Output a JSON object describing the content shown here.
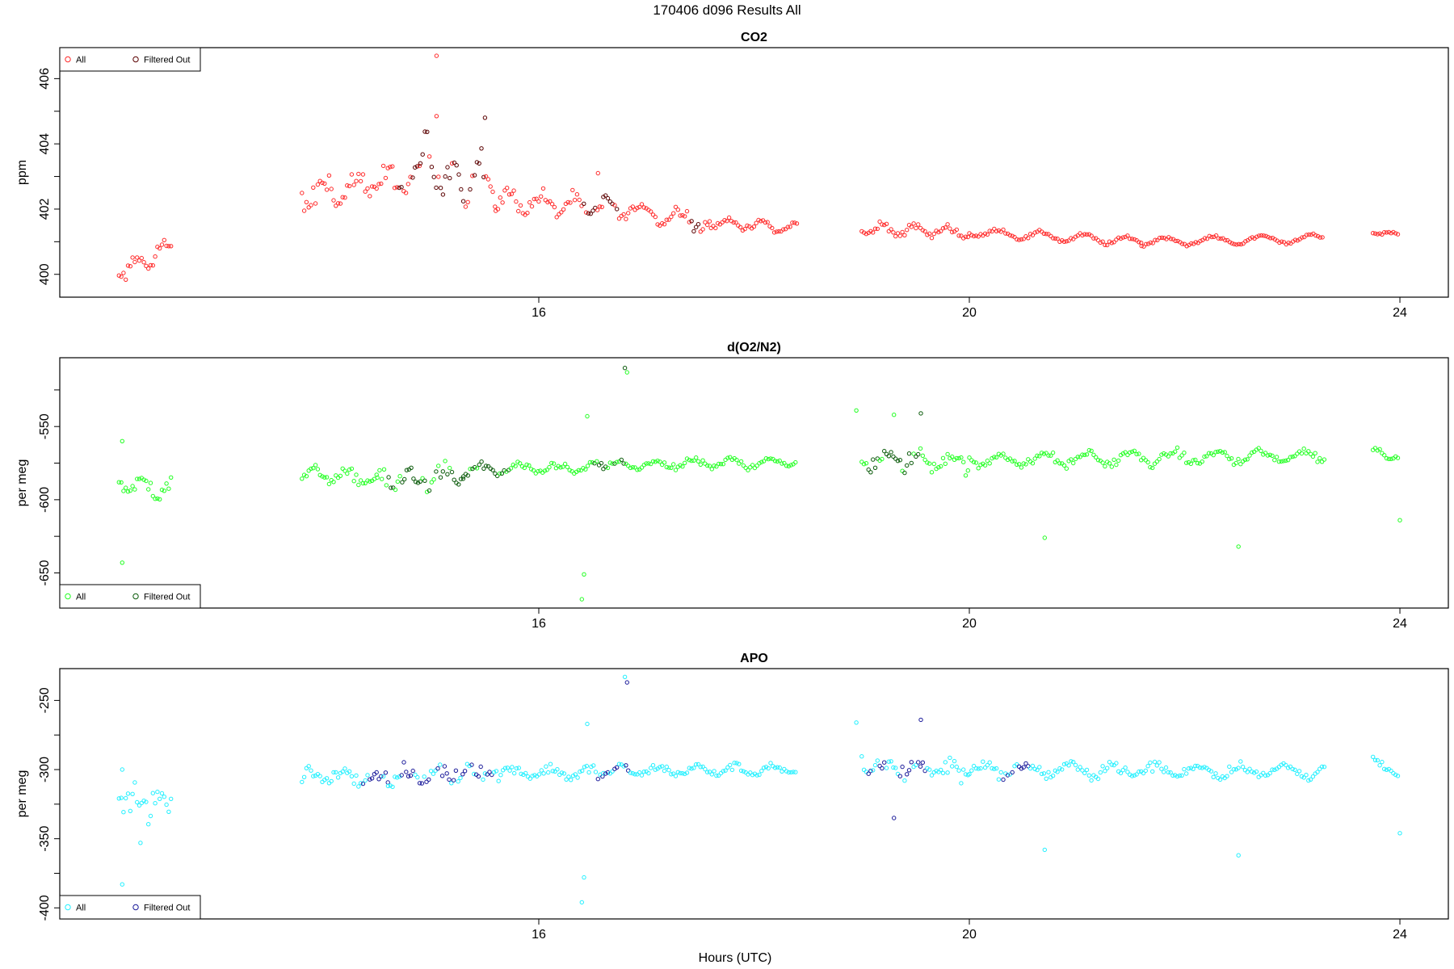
{
  "main_title": "170406   d096   Results All",
  "xlabel": "Hours (UTC)",
  "chart_data": [
    {
      "type": "scatter",
      "title": "CO2",
      "ylabel": "ppm",
      "xlim": [
        11.55,
        24.45
      ],
      "ylim": [
        399.3,
        406.95
      ],
      "x_ticks": [
        16,
        20,
        24
      ],
      "y_ticks": [
        400,
        402,
        404,
        406
      ],
      "y_minor_ticks": [
        401,
        403,
        405
      ],
      "legend_position": "top-left",
      "colors": {
        "all": "#ff2a2a",
        "filtered": "#5a0000"
      },
      "series": [
        {
          "name": "All",
          "segments": [
            {
              "start": 12.1,
              "end": 12.6,
              "base": 400.0,
              "end_base": 400.9,
              "noise": 0.35,
              "amp": 0.2,
              "period": 0.25
            },
            {
              "start": 13.8,
              "end": 14.9,
              "base": 402.4,
              "end_base": 403.0,
              "noise": 0.5,
              "amp": 0.35,
              "period": 0.3
            },
            {
              "start": 14.9,
              "end": 15.6,
              "base": 403.3,
              "end_base": 402.8,
              "noise": 0.8,
              "amp": 0.6,
              "period": 0.25
            },
            {
              "start": 15.6,
              "end": 16.6,
              "base": 402.3,
              "end_base": 402.0,
              "noise": 0.35,
              "amp": 0.25,
              "period": 0.3
            },
            {
              "start": 16.6,
              "end": 17.6,
              "base": 402.1,
              "end_base": 401.6,
              "noise": 0.25,
              "amp": 0.25,
              "period": 0.35
            },
            {
              "start": 17.6,
              "end": 18.4,
              "base": 401.6,
              "end_base": 401.4,
              "noise": 0.12,
              "amp": 0.15,
              "period": 0.3
            },
            {
              "start": 19.0,
              "end": 20.0,
              "base": 401.4,
              "end_base": 401.3,
              "noise": 0.15,
              "amp": 0.15,
              "period": 0.3
            },
            {
              "start": 20.0,
              "end": 21.6,
              "base": 401.3,
              "end_base": 401.0,
              "noise": 0.08,
              "amp": 0.12,
              "period": 0.4
            },
            {
              "start": 21.6,
              "end": 23.3,
              "base": 401.0,
              "end_base": 401.1,
              "noise": 0.06,
              "amp": 0.12,
              "period": 0.45
            },
            {
              "start": 23.75,
              "end": 24.0,
              "base": 401.3,
              "end_base": 401.2,
              "noise": 0.04,
              "amp": 0.05,
              "period": 0.3
            }
          ],
          "extra_points": [
            [
              15.05,
              406.7
            ],
            [
              15.05,
              404.85
            ],
            [
              15.5,
              404.8
            ],
            [
              16.55,
              403.1
            ]
          ]
        },
        {
          "name": "Filtered Out",
          "ranges": [
            [
              14.7,
              15.55
            ],
            [
              16.4,
              16.8
            ],
            [
              17.4,
              17.5
            ]
          ]
        }
      ]
    },
    {
      "type": "scatter",
      "title": "d(O2/N2)",
      "ylabel": "per meg",
      "xlim": [
        11.55,
        24.45
      ],
      "ylim": [
        -674,
        -503
      ],
      "x_ticks": [
        16,
        20,
        24
      ],
      "y_ticks": [
        -550,
        -600,
        -650
      ],
      "y_minor_ticks": [
        -525,
        -575,
        -625
      ],
      "legend_position": "bottom-left",
      "colors": {
        "all": "#22ff22",
        "filtered": "#0a5a0a"
      },
      "series": [
        {
          "name": "All",
          "segments": [
            {
              "start": 12.1,
              "end": 12.6,
              "base": -590,
              "end_base": -592,
              "noise": 9,
              "amp": 4,
              "period": 0.25
            },
            {
              "start": 13.8,
              "end": 14.5,
              "base": -582,
              "end_base": -586,
              "noise": 5,
              "amp": 3,
              "period": 0.3
            },
            {
              "start": 14.5,
              "end": 15.3,
              "base": -588,
              "end_base": -583,
              "noise": 9,
              "amp": 5,
              "period": 0.3
            },
            {
              "start": 15.3,
              "end": 16.6,
              "base": -580,
              "end_base": -578,
              "noise": 4,
              "amp": 3,
              "period": 0.35
            },
            {
              "start": 16.6,
              "end": 18.4,
              "base": -577,
              "end_base": -574,
              "noise": 3,
              "amp": 3,
              "period": 0.35
            },
            {
              "start": 19.0,
              "end": 20.0,
              "base": -573,
              "end_base": -573,
              "noise": 8,
              "amp": 4,
              "period": 0.3
            },
            {
              "start": 20.0,
              "end": 23.3,
              "base": -573,
              "end_base": -570,
              "noise": 4,
              "amp": 4,
              "period": 0.4
            },
            {
              "start": 23.75,
              "end": 24.0,
              "base": -566,
              "end_base": -572,
              "noise": 3,
              "amp": 2,
              "period": 0.3
            }
          ],
          "extra_points": [
            [
              12.13,
              -560
            ],
            [
              12.13,
              -643
            ],
            [
              16.4,
              -668
            ],
            [
              16.42,
              -651
            ],
            [
              16.45,
              -543
            ],
            [
              16.8,
              -510
            ],
            [
              16.82,
              -513
            ],
            [
              18.95,
              -539
            ],
            [
              19.3,
              -542
            ],
            [
              19.55,
              -541
            ],
            [
              20.7,
              -626
            ],
            [
              22.5,
              -632
            ],
            [
              24.0,
              -614
            ]
          ]
        },
        {
          "name": "Filtered Out",
          "ranges": [
            [
              14.6,
              15.75
            ],
            [
              16.5,
              16.8
            ],
            [
              19.05,
              19.55
            ]
          ]
        }
      ]
    },
    {
      "type": "scatter",
      "title": "APO",
      "ylabel": "per meg",
      "xlim": [
        11.55,
        24.45
      ],
      "ylim": [
        -408,
        -227
      ],
      "x_ticks": [
        16,
        20,
        24
      ],
      "y_ticks": [
        -250,
        -300,
        -350,
        -400
      ],
      "y_minor_ticks": [
        -275,
        -325,
        -375
      ],
      "legend_position": "bottom-left",
      "colors": {
        "all": "#22f0ff",
        "filtered": "#1a1a9a"
      },
      "series": [
        {
          "name": "All",
          "segments": [
            {
              "start": 12.1,
              "end": 12.6,
              "base": -322,
              "end_base": -326,
              "noise": 12,
              "amp": 5,
              "period": 0.25
            },
            {
              "start": 13.8,
              "end": 14.6,
              "base": -304,
              "end_base": -306,
              "noise": 6,
              "amp": 3,
              "period": 0.3
            },
            {
              "start": 14.6,
              "end": 15.5,
              "base": -307,
              "end_base": -300,
              "noise": 8,
              "amp": 4,
              "period": 0.3
            },
            {
              "start": 15.5,
              "end": 16.6,
              "base": -301,
              "end_base": -303,
              "noise": 6,
              "amp": 3,
              "period": 0.35
            },
            {
              "start": 16.6,
              "end": 18.4,
              "base": -301,
              "end_base": -300,
              "noise": 4,
              "amp": 3,
              "period": 0.35
            },
            {
              "start": 19.0,
              "end": 20.0,
              "base": -298,
              "end_base": -300,
              "noise": 9,
              "amp": 4,
              "period": 0.3
            },
            {
              "start": 20.0,
              "end": 23.3,
              "base": -300,
              "end_base": -301,
              "noise": 5,
              "amp": 4,
              "period": 0.4
            },
            {
              "start": 23.75,
              "end": 24.0,
              "base": -295,
              "end_base": -304,
              "noise": 4,
              "amp": 2,
              "period": 0.3
            }
          ],
          "extra_points": [
            [
              12.13,
              -300
            ],
            [
              12.13,
              -383
            ],
            [
              12.3,
              -353
            ],
            [
              16.4,
              -396
            ],
            [
              16.42,
              -378
            ],
            [
              16.45,
              -267
            ],
            [
              16.8,
              -233
            ],
            [
              16.82,
              -237
            ],
            [
              18.95,
              -266
            ],
            [
              19.3,
              -335
            ],
            [
              19.55,
              -264
            ],
            [
              20.7,
              -358
            ],
            [
              22.5,
              -362
            ],
            [
              24.0,
              -346
            ]
          ]
        },
        {
          "name": "Filtered Out",
          "ranges": [
            [
              14.35,
              15.6
            ],
            [
              16.5,
              16.85
            ],
            [
              19.05,
              19.6
            ],
            [
              20.3,
              20.55
            ]
          ]
        }
      ]
    }
  ]
}
